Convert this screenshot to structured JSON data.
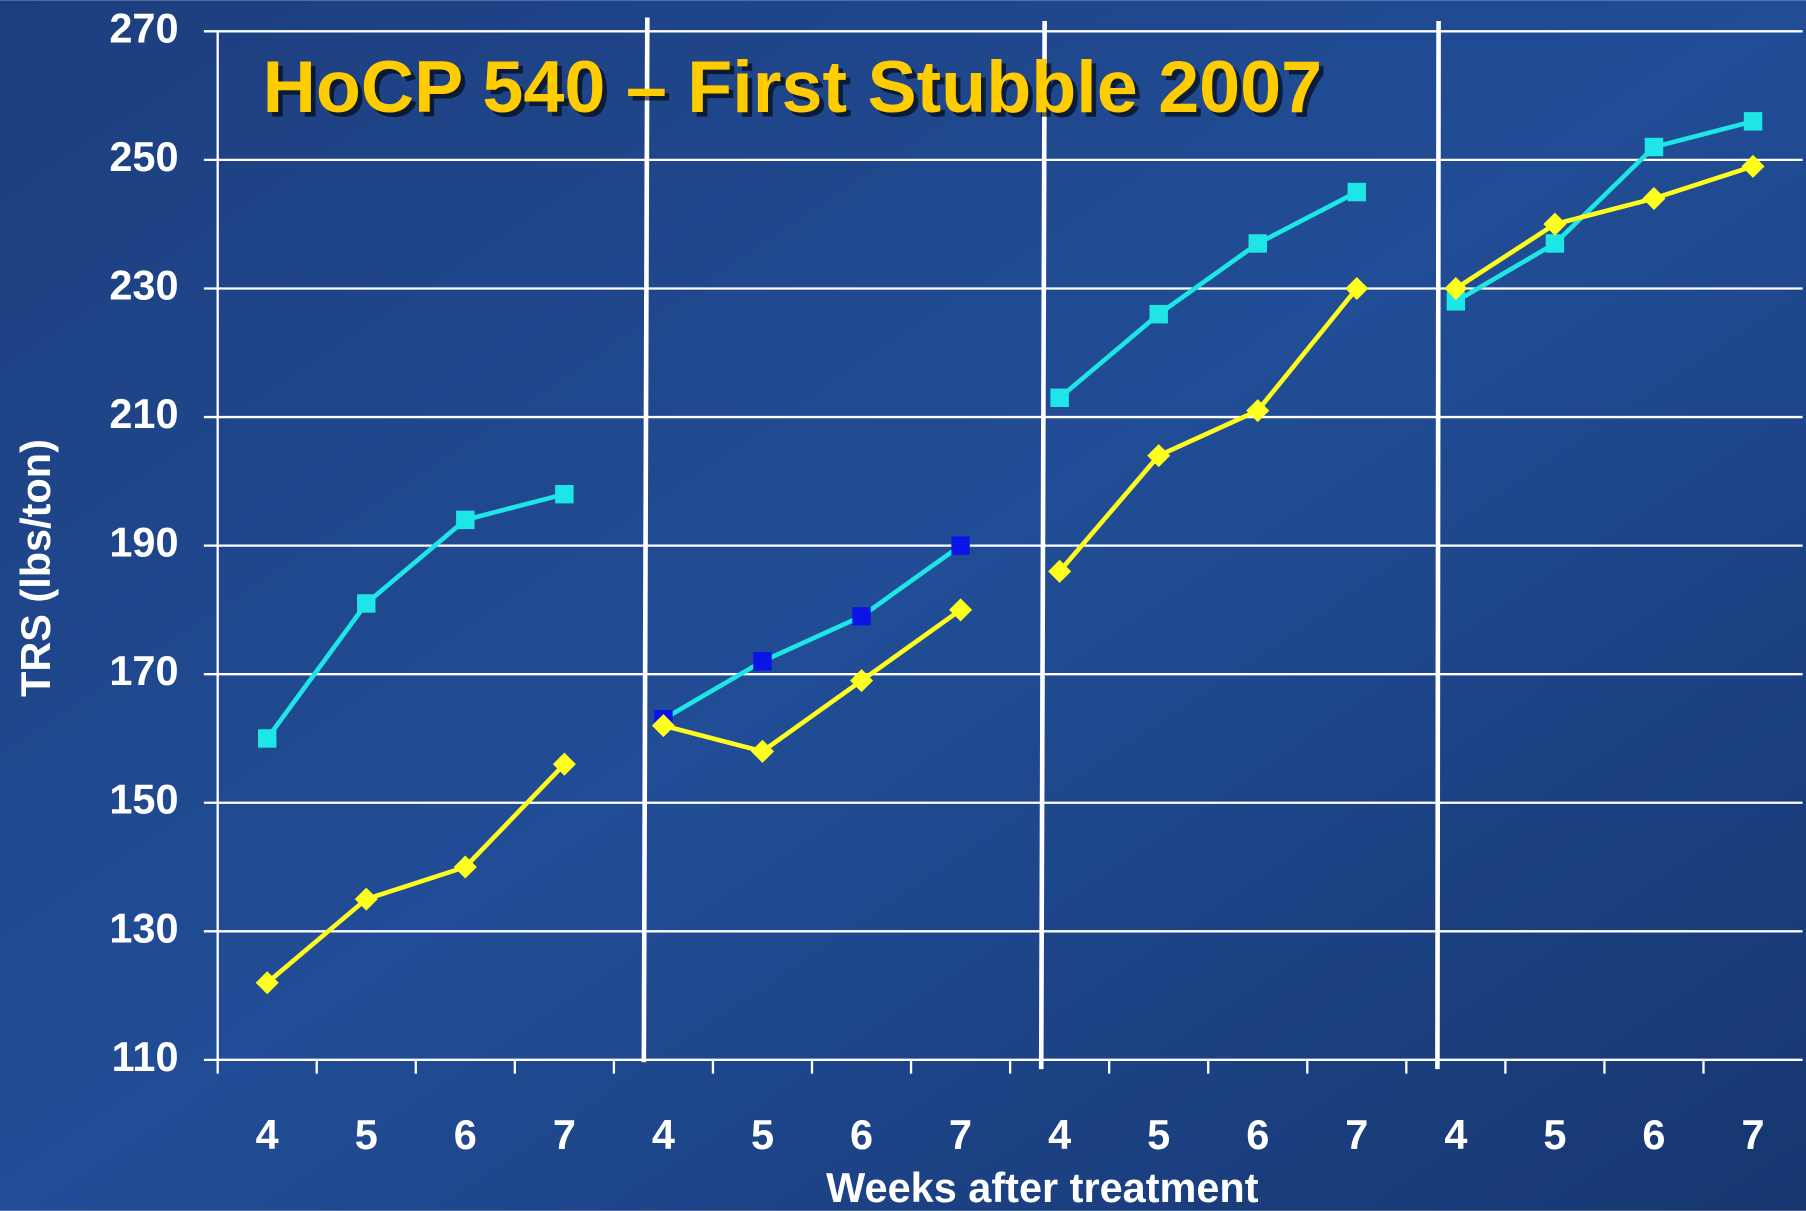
{
  "chart_data": {
    "type": "line",
    "title": "HoCP 540 – First Stubble 2007",
    "y_label": "TRS (lbs/ton)",
    "x_label": "Weeks after treatment",
    "categories": [
      "4",
      "5",
      "6",
      "7",
      "4",
      "5",
      "6",
      "7",
      "4",
      "5",
      "6",
      "7",
      "4",
      "5",
      "6",
      "7"
    ],
    "ylim": [
      110,
      270
    ],
    "yticks": [
      110,
      130,
      150,
      170,
      190,
      210,
      230,
      250,
      270
    ],
    "grid": true,
    "series": [
      {
        "color": "#1ee6e6",
        "marker": "square",
        "values": [
          160,
          181,
          194,
          198,
          null,
          null,
          null,
          null,
          null,
          null,
          null,
          null,
          null,
          null,
          null,
          null
        ]
      },
      {
        "color": "#ffff1e",
        "marker": "diamond",
        "values": [
          122,
          135,
          140,
          156,
          null,
          null,
          null,
          null,
          null,
          null,
          null,
          null,
          null,
          null,
          null,
          null
        ]
      },
      {
        "color": "#1ee6e6",
        "marker": "square",
        "marker_color": "#0a14e6",
        "values": [
          null,
          null,
          null,
          null,
          163,
          172,
          179,
          190,
          null,
          null,
          null,
          null,
          null,
          null,
          null,
          null
        ]
      },
      {
        "color": "#ffff1e",
        "marker": "diamond",
        "values": [
          null,
          null,
          null,
          null,
          162,
          158,
          169,
          180,
          null,
          null,
          null,
          null,
          null,
          null,
          null,
          null
        ]
      },
      {
        "color": "#1ee6e6",
        "marker": "square",
        "values": [
          null,
          null,
          null,
          null,
          null,
          null,
          null,
          null,
          213,
          226,
          237,
          245,
          null,
          null,
          null,
          null
        ]
      },
      {
        "color": "#ffff1e",
        "marker": "diamond",
        "values": [
          null,
          null,
          null,
          null,
          null,
          null,
          null,
          null,
          186,
          204,
          211,
          230,
          null,
          null,
          null,
          null
        ]
      },
      {
        "color": "#1ee6e6",
        "marker": "square",
        "values": [
          null,
          null,
          null,
          null,
          null,
          null,
          null,
          null,
          null,
          null,
          null,
          null,
          228,
          237,
          252,
          256
        ]
      },
      {
        "color": "#ffff1e",
        "marker": "diamond",
        "values": [
          null,
          null,
          null,
          null,
          null,
          null,
          null,
          null,
          null,
          null,
          null,
          null,
          230,
          240,
          244,
          249
        ]
      }
    ]
  }
}
